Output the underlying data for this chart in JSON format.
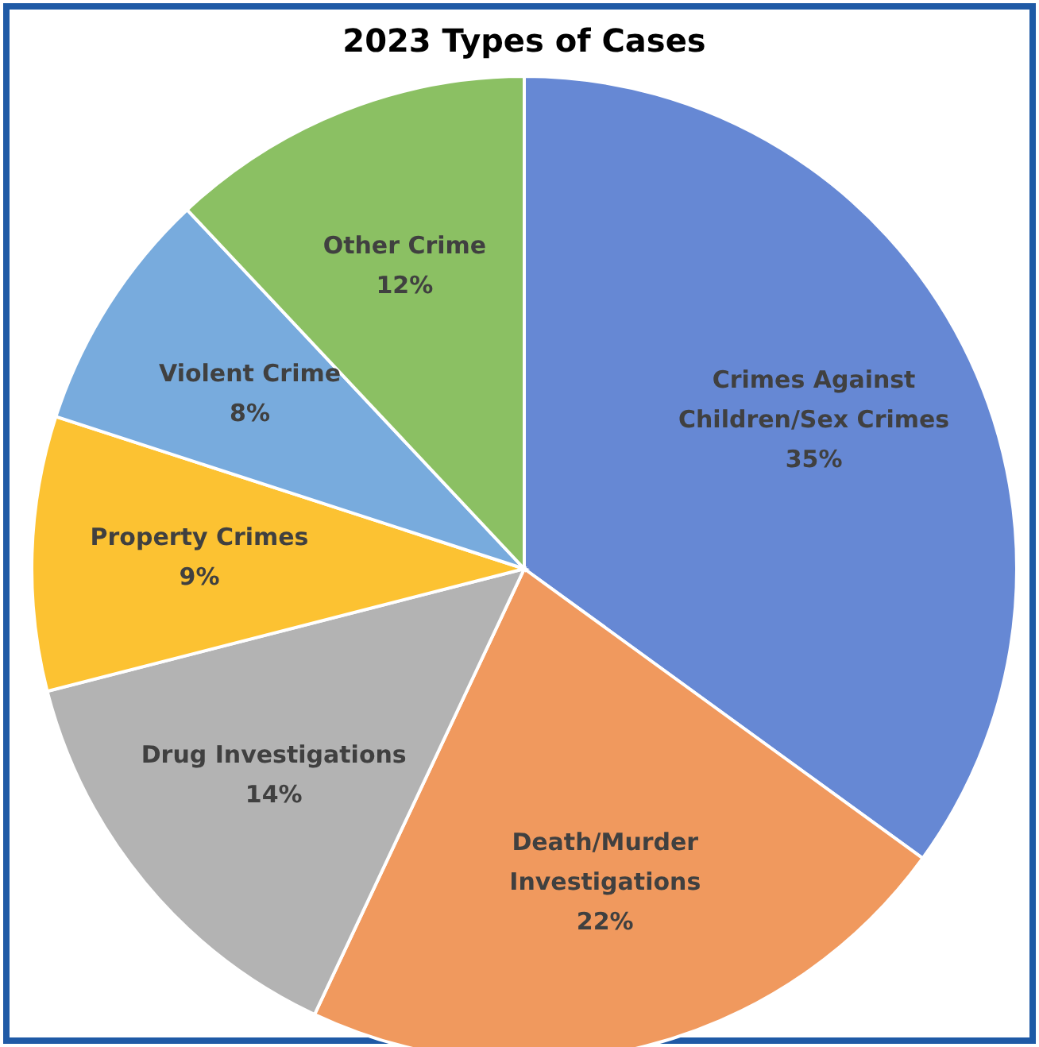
{
  "chart_data": {
    "type": "pie",
    "title": "2023 Types of Cases",
    "categories": [
      "Crimes Against Children/Sex Crimes",
      "Death/Murder Investigations",
      "Drug Investigations",
      "Property Crimes",
      "Violent Crime",
      "Other Crime"
    ],
    "values": [
      35,
      22,
      14,
      9,
      8,
      12
    ],
    "value_labels": [
      "35%",
      "22%",
      "14%",
      "9%",
      "8%",
      "12%"
    ],
    "colors": [
      "#6688d4",
      "#f0995e",
      "#b3b3b3",
      "#fcc232",
      "#78abdd",
      "#8bc063"
    ]
  }
}
